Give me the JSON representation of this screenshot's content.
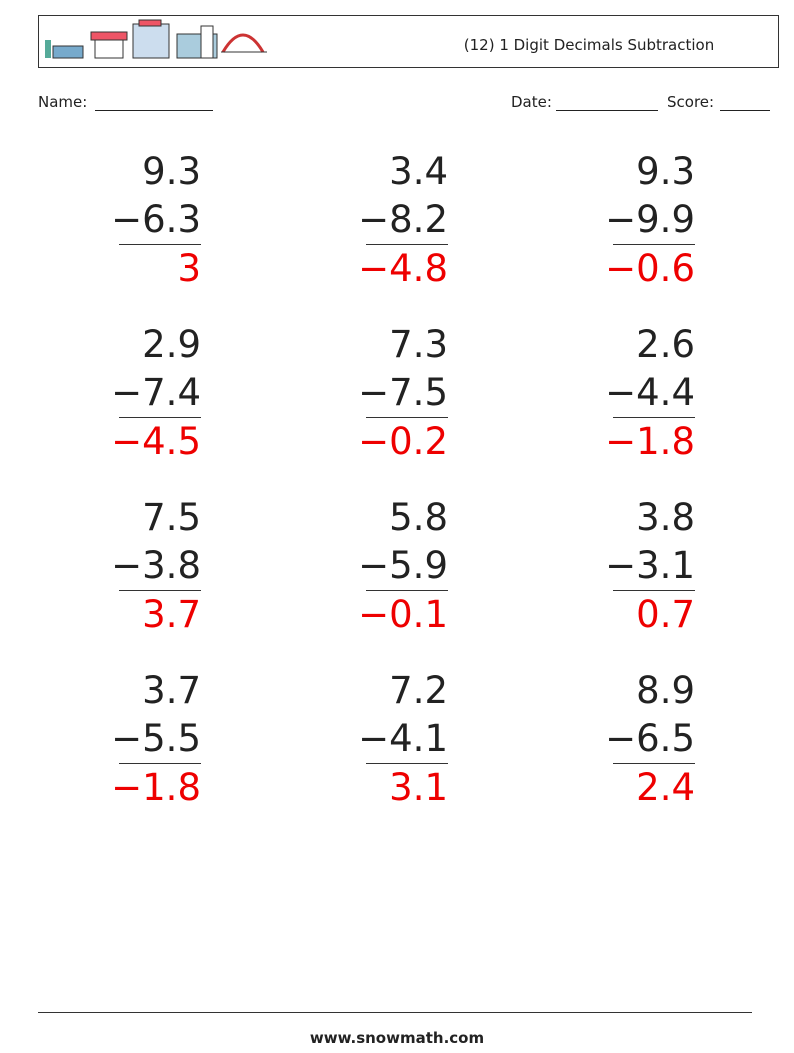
{
  "header": {
    "title": "(12) 1 Digit Decimals Subtraction"
  },
  "fields": {
    "name": "Name:",
    "date": "Date:",
    "score": "Score:"
  },
  "problems": [
    {
      "top": "9.3",
      "bottom": "−6.3",
      "answer": "3"
    },
    {
      "top": "3.4",
      "bottom": "−8.2",
      "answer": "−4.8"
    },
    {
      "top": "9.3",
      "bottom": "−9.9",
      "answer": "−0.6"
    },
    {
      "top": "2.9",
      "bottom": "−7.4",
      "answer": "−4.5"
    },
    {
      "top": "7.3",
      "bottom": "−7.5",
      "answer": "−0.2"
    },
    {
      "top": "2.6",
      "bottom": "−4.4",
      "answer": "−1.8"
    },
    {
      "top": "7.5",
      "bottom": "−3.8",
      "answer": "3.7"
    },
    {
      "top": "5.8",
      "bottom": "−5.9",
      "answer": "−0.1"
    },
    {
      "top": "3.8",
      "bottom": "−3.1",
      "answer": "0.7"
    },
    {
      "top": "3.7",
      "bottom": "−5.5",
      "answer": "−1.8"
    },
    {
      "top": "7.2",
      "bottom": "−4.1",
      "answer": "3.1"
    },
    {
      "top": "8.9",
      "bottom": "−6.5",
      "answer": "2.4"
    }
  ],
  "footer": {
    "url": "www.snowmath.com"
  }
}
